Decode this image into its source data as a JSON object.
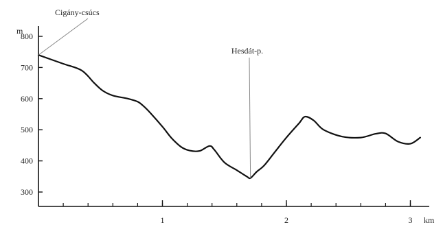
{
  "chart_data": {
    "type": "line",
    "title": "",
    "xlabel": "km",
    "ylabel": "m",
    "xlim": [
      0,
      3.15
    ],
    "ylim": [
      250,
      860
    ],
    "x_ticks": [
      1,
      2,
      3
    ],
    "x_tick_labels": [
      "1",
      "2",
      "3"
    ],
    "x_minor_step": 0.2,
    "y_ticks": [
      300,
      400,
      500,
      600,
      700,
      800
    ],
    "y_tick_labels": [
      "300",
      "400",
      "500",
      "600",
      "700",
      "800"
    ],
    "grid": false,
    "line_color": "#111111",
    "series": [
      {
        "x": [
          0.0,
          0.2,
          0.35,
          0.45,
          0.52,
          0.6,
          0.72,
          0.8,
          0.85,
          0.9,
          1.0,
          1.07,
          1.15,
          1.22,
          1.3,
          1.38,
          1.42,
          1.5,
          1.6,
          1.68,
          1.71,
          1.76,
          1.82,
          1.9,
          2.0,
          2.1,
          2.15,
          2.22,
          2.3,
          2.45,
          2.6,
          2.72,
          2.8,
          2.9,
          3.0,
          3.08
        ],
        "y": [
          740,
          712,
          690,
          650,
          625,
          610,
          600,
          590,
          575,
          555,
          510,
          475,
          445,
          433,
          432,
          448,
          435,
          395,
          370,
          350,
          345,
          365,
          385,
          425,
          475,
          520,
          542,
          530,
          500,
          478,
          475,
          487,
          488,
          462,
          455,
          475
        ]
      }
    ],
    "annotations": [
      {
        "text": "Cigány-csúcs",
        "x": 0.0,
        "y": 740
      },
      {
        "text": "Hesdát-p.",
        "x": 1.71,
        "y": 345
      }
    ]
  }
}
